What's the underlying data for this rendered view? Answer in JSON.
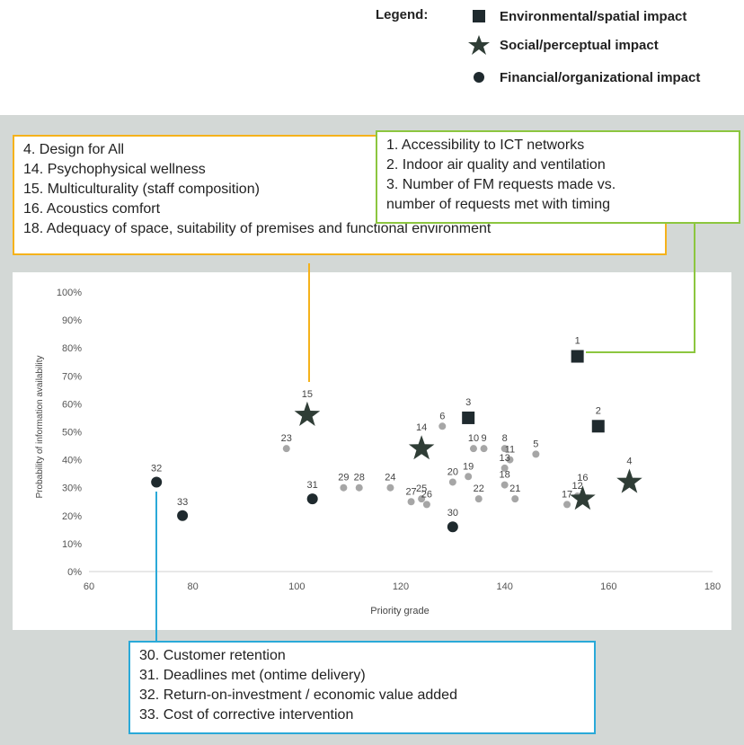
{
  "legend": {
    "title": "Legend:",
    "items": [
      {
        "label": "Environmental/spatial impact",
        "symbol": "square"
      },
      {
        "label": "Social/perceptual impact",
        "symbol": "star"
      },
      {
        "label": "Financial/organizational impact",
        "symbol": "circle"
      }
    ]
  },
  "callouts": {
    "orange": [
      "4.   Design for All",
      "14. Psychophysical wellness",
      "15. Multiculturality  (staff composition)",
      "16. Acoustics comfort",
      "18. Adequacy of space, suitability of premises and functional environment"
    ],
    "green": [
      "1.   Accessibility to ICT networks",
      "2.   Indoor air quality and ventilation",
      "3.   Number of FM requests made vs.",
      "      number of requests met with timing"
    ],
    "blue": [
      "30. Customer retention",
      "31. Deadlines met (ontime delivery)",
      "32. Return-on-investment / economic value added",
      "33. Cost of corrective intervention"
    ]
  },
  "colors": {
    "orange": "#f5b21b",
    "green": "#8cc63f",
    "blue": "#2aa9d8",
    "marker_dark": "#1f2a2e",
    "star": "#2f3d36",
    "gray_point": "#a6a6a6",
    "panel": "#d3d8d6"
  },
  "chart_data": {
    "type": "scatter",
    "xlabel": "Priority grade",
    "ylabel": "Probability of information availability",
    "xlim": [
      60,
      180
    ],
    "ylim": [
      0,
      100
    ],
    "xticks": [
      "60",
      "80",
      "100",
      "120",
      "140",
      "160",
      "180"
    ],
    "yticks": [
      "0%",
      "10%",
      "20%",
      "30%",
      "40%",
      "50%",
      "60%",
      "70%",
      "80%",
      "90%",
      "100%"
    ],
    "grid": false,
    "series": [
      {
        "name": "Environmental/spatial impact",
        "marker": "square",
        "points": [
          {
            "label": "1",
            "x": 154,
            "y": 77
          },
          {
            "label": "2",
            "x": 158,
            "y": 52
          },
          {
            "label": "3",
            "x": 133,
            "y": 55
          }
        ]
      },
      {
        "name": "Social/perceptual impact",
        "marker": "star",
        "points": [
          {
            "label": "15",
            "x": 102,
            "y": 56
          },
          {
            "label": "14",
            "x": 124,
            "y": 44
          },
          {
            "label": "4",
            "x": 164,
            "y": 32
          },
          {
            "label": "16",
            "x": 155,
            "y": 26
          }
        ]
      },
      {
        "name": "Financial/organizational impact",
        "marker": "circle",
        "points": [
          {
            "label": "32",
            "x": 73,
            "y": 32
          },
          {
            "label": "33",
            "x": 78,
            "y": 20
          },
          {
            "label": "31",
            "x": 103,
            "y": 26
          },
          {
            "label": "30",
            "x": 130,
            "y": 16
          }
        ]
      },
      {
        "marker": "small-circle",
        "points": [
          {
            "label": "23",
            "x": 98,
            "y": 44
          },
          {
            "label": "6",
            "x": 128,
            "y": 52
          },
          {
            "label": "10",
            "x": 134,
            "y": 44
          },
          {
            "label": "9",
            "x": 136,
            "y": 44
          },
          {
            "label": "8",
            "x": 140,
            "y": 44
          },
          {
            "label": "11",
            "x": 141,
            "y": 40
          },
          {
            "label": "5",
            "x": 146,
            "y": 42
          },
          {
            "label": "13",
            "x": 140,
            "y": 37
          },
          {
            "label": "18",
            "x": 140,
            "y": 31
          },
          {
            "label": "20",
            "x": 130,
            "y": 32
          },
          {
            "label": "19",
            "x": 133,
            "y": 34
          },
          {
            "label": "22",
            "x": 135,
            "y": 26
          },
          {
            "label": "21",
            "x": 142,
            "y": 26
          },
          {
            "label": "29",
            "x": 109,
            "y": 30
          },
          {
            "label": "28",
            "x": 112,
            "y": 30
          },
          {
            "label": "24",
            "x": 118,
            "y": 30
          },
          {
            "label": "27",
            "x": 122,
            "y": 25
          },
          {
            "label": "25",
            "x": 124,
            "y": 26
          },
          {
            "label": "26",
            "x": 125,
            "y": 24
          },
          {
            "label": "17",
            "x": 152,
            "y": 24
          },
          {
            "label": "12",
            "x": 154,
            "y": 27
          }
        ]
      }
    ]
  }
}
